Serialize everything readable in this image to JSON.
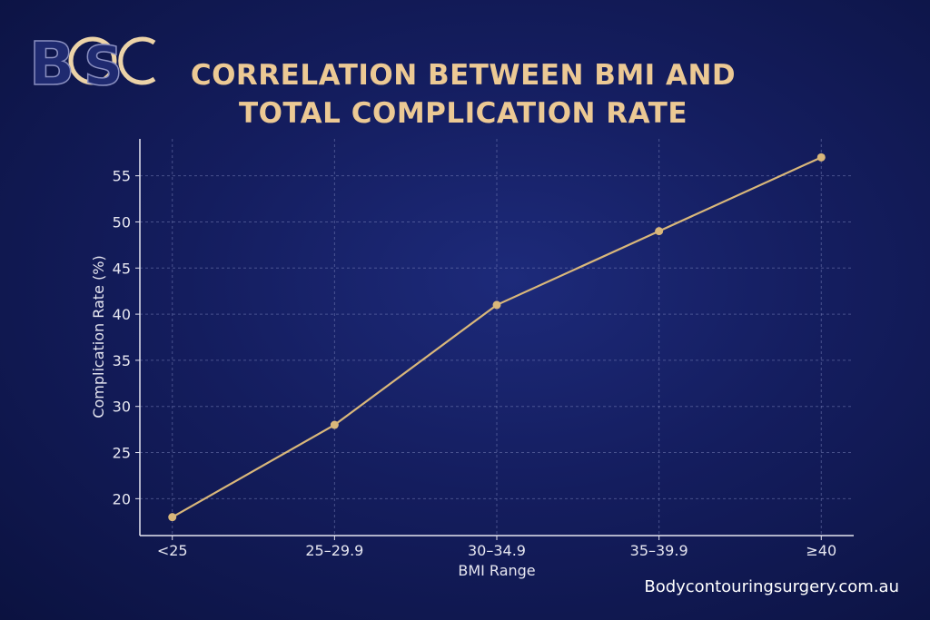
{
  "logo_text": "BCSC",
  "site": "Bodycontouringsurgery.com.au",
  "chart_data": {
    "type": "line",
    "title": "CORRELATION BETWEEN BMI AND TOTAL COMPLICATION RATE",
    "title_lines": [
      "CORRELATION BETWEEN BMI AND",
      "TOTAL COMPLICATION RATE"
    ],
    "xlabel": "BMI Range",
    "ylabel": "Complication Rate (%)",
    "categories": [
      "<25",
      "25–29.9",
      "30–34.9",
      "35–39.9",
      "≥40"
    ],
    "values": [
      18,
      28,
      41,
      49,
      57
    ],
    "yticks": [
      20,
      25,
      30,
      35,
      40,
      45,
      50,
      55
    ],
    "ylim": [
      16,
      59
    ],
    "grid": true,
    "line_color": "#d9b77a",
    "axis_color": "#e6e6f0"
  }
}
